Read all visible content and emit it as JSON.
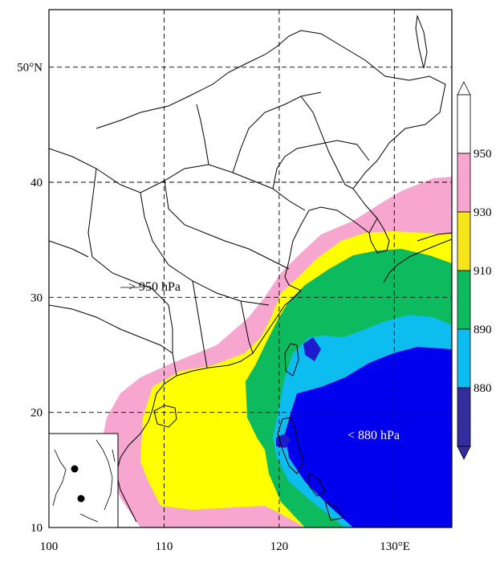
{
  "map": {
    "lon_range": [
      100,
      135
    ],
    "lat_range": [
      10,
      55
    ],
    "x_ticks": [
      {
        "value": 100,
        "label": "100"
      },
      {
        "value": 110,
        "label": "110"
      },
      {
        "value": 120,
        "label": "120"
      },
      {
        "value": 130,
        "label": "130°E"
      }
    ],
    "y_ticks": [
      {
        "value": 10,
        "label": "10"
      },
      {
        "value": 20,
        "label": "20"
      },
      {
        "value": 30,
        "label": "30"
      },
      {
        "value": 40,
        "label": "40"
      },
      {
        "value": 50,
        "label": "50°N"
      }
    ],
    "grid_lons": [
      110,
      120,
      130
    ],
    "grid_lats": [
      20,
      30,
      40,
      50
    ],
    "grid": "dashed",
    "annotations": [
      {
        "text": "> 950 hPa"
      },
      {
        "text": "< 880 hPa"
      }
    ]
  },
  "colorbar": {
    "placement": "right",
    "extend": "both",
    "levels": [
      {
        "label": "950",
        "color": "#ffffff"
      },
      {
        "label": "930",
        "color": "#f7a6cf"
      },
      {
        "label": "910",
        "color": "#f7e51c"
      },
      {
        "label": "890",
        "color": "#0dba5e"
      },
      {
        "label": "880",
        "color": "#0dbdf0"
      },
      {
        "label": "",
        "color": "#352c9e"
      }
    ],
    "top_arrow_color": "#ffffff",
    "bottom_arrow_color": "#352c9e"
  },
  "colors": {
    "white_region": "#ffffff",
    "pink": "#f7a6cf",
    "yellow": "#ffff00",
    "green": "#0dba5e",
    "cyan": "#0dbdf0",
    "blue": "#0000ee",
    "dark_blue": "#1c1ccc"
  }
}
